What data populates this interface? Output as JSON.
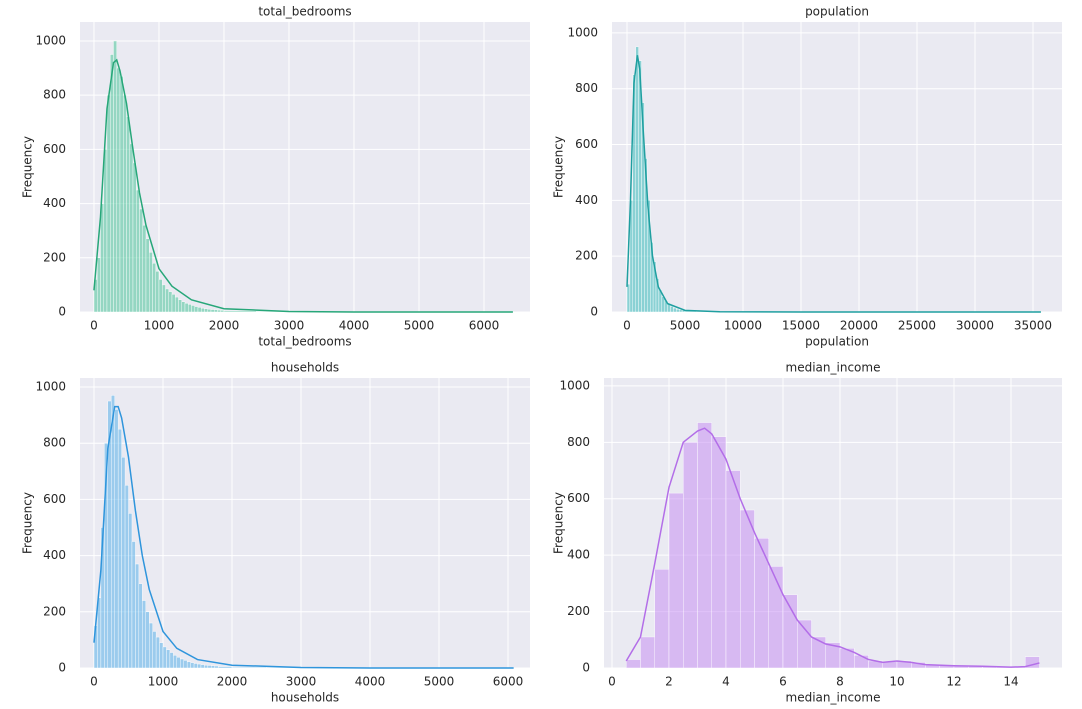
{
  "chart_data": [
    {
      "type": "histogram",
      "title": "total_bedrooms",
      "xlabel": "total_bedrooms",
      "ylabel": "Frequency",
      "color": "#4cc49a",
      "line_color": "#27a779",
      "grid": true,
      "bins": [
        0,
        50,
        100,
        150,
        200,
        250,
        300,
        350,
        400,
        450,
        500,
        550,
        600,
        650,
        700,
        750,
        800,
        850,
        900,
        950,
        1000,
        1050,
        1100,
        1150,
        1200,
        1250,
        1300,
        1350,
        1400,
        1450,
        1500,
        1550,
        1600,
        1650,
        1700,
        1750,
        1800,
        1850,
        1900,
        1950,
        2000,
        2500,
        3000,
        4000,
        5000,
        6500
      ],
      "values": [
        120,
        200,
        400,
        600,
        800,
        950,
        1000,
        900,
        870,
        800,
        720,
        620,
        550,
        450,
        380,
        320,
        270,
        220,
        180,
        150,
        120,
        100,
        85,
        75,
        65,
        55,
        45,
        38,
        32,
        28,
        24,
        20,
        17,
        14,
        12,
        10,
        9,
        8,
        7,
        6,
        4,
        2,
        1,
        1,
        0.5
      ],
      "kde_x": [
        0,
        100,
        200,
        300,
        350,
        400,
        500,
        600,
        700,
        800,
        1000,
        1200,
        1500,
        2000,
        3000,
        4000,
        5000,
        6445
      ],
      "kde_y": [
        80,
        350,
        750,
        920,
        930,
        890,
        770,
        600,
        440,
        320,
        160,
        95,
        45,
        12,
        2,
        0,
        0,
        0
      ],
      "xlim": [
        -215,
        6708
      ],
      "ylim": [
        0,
        1070
      ],
      "xticks": [
        0,
        1000,
        2000,
        3000,
        4000,
        5000,
        6000
      ],
      "yticks": [
        0,
        200,
        400,
        600,
        800,
        1000
      ]
    },
    {
      "type": "histogram",
      "title": "population",
      "xlabel": "population",
      "ylabel": "Frequency",
      "color": "#3bbcbc",
      "line_color": "#1f9fa0",
      "grid": true,
      "bins": [
        0,
        250,
        500,
        750,
        1000,
        1250,
        1500,
        1750,
        2000,
        2250,
        2500,
        2750,
        3000,
        3250,
        3500,
        3750,
        4000,
        4250,
        4500,
        4750,
        5000,
        6000,
        8000,
        12000,
        20000,
        36000
      ],
      "values": [
        100,
        400,
        850,
        950,
        900,
        750,
        550,
        400,
        250,
        180,
        120,
        80,
        55,
        40,
        28,
        20,
        14,
        10,
        8,
        6,
        4,
        2,
        1,
        0,
        0
      ],
      "kde_x": [
        0,
        300,
        600,
        900,
        1100,
        1400,
        1800,
        2200,
        2700,
        3500,
        5000,
        8000,
        15000,
        25000,
        35682
      ],
      "kde_y": [
        90,
        400,
        820,
        920,
        870,
        650,
        380,
        200,
        90,
        30,
        6,
        1,
        0,
        0,
        0
      ],
      "xlim": [
        -1293,
        37500
      ],
      "ylim": [
        0,
        1039
      ],
      "xticks": [
        0,
        5000,
        10000,
        15000,
        20000,
        25000,
        30000,
        35000
      ],
      "yticks": [
        0,
        200,
        400,
        600,
        800,
        1000
      ]
    },
    {
      "type": "histogram",
      "title": "households",
      "xlabel": "households",
      "ylabel": "Frequency",
      "color": "#5ab0ea",
      "line_color": "#2f95dc",
      "grid": true,
      "bins": [
        0,
        50,
        100,
        150,
        200,
        250,
        300,
        350,
        400,
        450,
        500,
        550,
        600,
        650,
        700,
        750,
        800,
        850,
        900,
        950,
        1000,
        1050,
        1100,
        1150,
        1200,
        1250,
        1300,
        1350,
        1400,
        1450,
        1500,
        1550,
        1600,
        1650,
        1700,
        1750,
        1800,
        2000,
        2500,
        3000,
        4000,
        6100
      ],
      "values": [
        150,
        250,
        500,
        800,
        950,
        970,
        920,
        850,
        750,
        650,
        550,
        450,
        370,
        300,
        240,
        200,
        160,
        130,
        110,
        90,
        75,
        65,
        55,
        45,
        38,
        32,
        27,
        22,
        19,
        16,
        14,
        12,
        10,
        9,
        8,
        7,
        5,
        3,
        2,
        1,
        1
      ],
      "kde_x": [
        0,
        100,
        200,
        300,
        350,
        400,
        500,
        600,
        700,
        800,
        1000,
        1200,
        1500,
        2000,
        3000,
        4000,
        5000,
        6082
      ],
      "kde_y": [
        90,
        350,
        780,
        930,
        930,
        890,
        750,
        560,
        400,
        280,
        130,
        70,
        30,
        10,
        2,
        0,
        0,
        0
      ],
      "xlim": [
        -203,
        6319
      ],
      "ylim": [
        0,
        1032
      ],
      "xticks": [
        0,
        1000,
        2000,
        3000,
        4000,
        5000,
        6000
      ],
      "yticks": [
        0,
        200,
        400,
        600,
        800,
        1000
      ]
    },
    {
      "type": "histogram",
      "title": "median_income",
      "xlabel": "median_income",
      "ylabel": "Frequency",
      "color": "#c690f2",
      "line_color": "#b36ee8",
      "grid": true,
      "bins": [
        0.5,
        1,
        1.5,
        2,
        2.5,
        3,
        3.5,
        4,
        4.5,
        5,
        5.5,
        6,
        6.5,
        7,
        7.5,
        8,
        8.5,
        9,
        9.5,
        10,
        10.5,
        11,
        11.5,
        12,
        12.5,
        13,
        13.5,
        14,
        14.5,
        15
      ],
      "values": [
        30,
        110,
        350,
        620,
        800,
        870,
        820,
        700,
        560,
        460,
        360,
        260,
        170,
        110,
        90,
        70,
        45,
        25,
        22,
        25,
        20,
        12,
        9,
        8,
        7,
        6,
        5,
        4,
        40
      ],
      "kde_x": [
        0.5,
        1,
        1.5,
        2,
        2.5,
        3,
        3.25,
        3.5,
        4,
        4.5,
        5,
        5.5,
        6,
        6.5,
        7,
        7.5,
        8,
        8.5,
        9,
        9.5,
        10,
        10.5,
        11,
        12,
        13,
        14,
        14.5,
        15
      ],
      "kde_y": [
        25,
        110,
        370,
        640,
        800,
        840,
        850,
        830,
        740,
        600,
        480,
        370,
        260,
        170,
        110,
        85,
        75,
        55,
        30,
        20,
        25,
        20,
        12,
        8,
        6,
        3,
        5,
        18
      ],
      "xlim": [
        -0.28,
        15.79
      ],
      "ylim": [
        0,
        1028
      ],
      "xticks": [
        0,
        2,
        4,
        6,
        8,
        10,
        12,
        14
      ],
      "yticks": [
        0,
        200,
        400,
        600,
        800,
        1000
      ]
    }
  ]
}
